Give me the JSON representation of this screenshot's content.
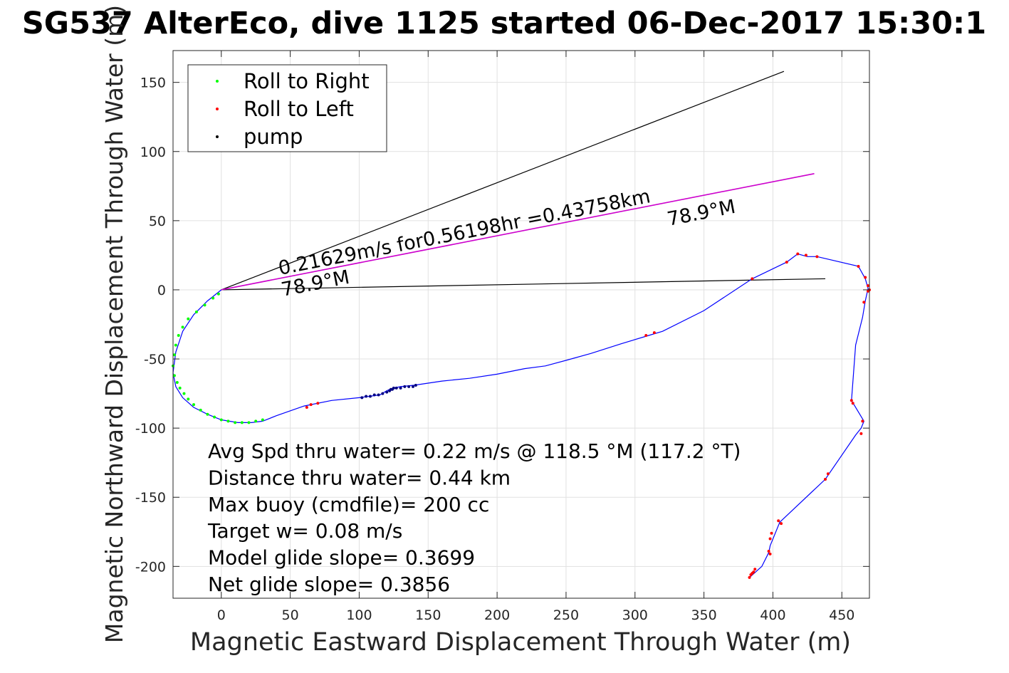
{
  "chart_data": {
    "type": "line",
    "title": "SG537 AlterEco, dive 1125 started 06-Dec-2017 15:30:1",
    "xlabel": "Magnetic Eastward Displacement Through Water (m)",
    "ylabel": "Magnetic Northward Displacement Through Water (m)",
    "xlim": [
      -35,
      470
    ],
    "ylim": [
      -223,
      173
    ],
    "xticks": [
      0,
      50,
      100,
      150,
      200,
      250,
      300,
      350,
      400,
      450
    ],
    "yticks": [
      -200,
      -150,
      -100,
      -50,
      0,
      50,
      100,
      150
    ],
    "grid": true,
    "legend": {
      "location": "top-left",
      "entries": [
        {
          "label": "Roll to Right",
          "color": "#00ff00"
        },
        {
          "label": "Roll to Left",
          "color": "#ff0000"
        },
        {
          "label": "pump",
          "color": "#000000"
        }
      ]
    },
    "colors": {
      "track": "#0000ff",
      "roll_right": "#00ff00",
      "roll_left": "#ff0000",
      "pump": "#000080",
      "avg_line": "#cc00cc",
      "bound_lines": "#000000"
    },
    "track": {
      "x": [
        0,
        -10,
        -20,
        -28,
        -33,
        -35,
        -33,
        -28,
        -20,
        -10,
        0,
        12,
        22,
        30,
        40,
        60,
        80,
        100,
        115,
        120,
        122,
        125,
        130,
        140,
        160,
        180,
        200,
        220,
        235,
        250,
        268,
        290,
        310,
        320,
        350,
        385,
        410,
        418,
        425,
        432,
        462,
        467,
        469,
        467,
        465,
        460,
        457,
        466,
        464,
        460,
        438,
        405,
        398,
        397,
        392,
        383
      ],
      "y": [
        0,
        -8,
        -18,
        -30,
        -45,
        -60,
        -70,
        -78,
        -85,
        -90,
        -94,
        -96,
        -96,
        -95,
        -91,
        -84,
        -80,
        -78,
        -76,
        -73,
        -72,
        -71,
        -70,
        -69,
        -66,
        -64,
        -61,
        -57,
        -55,
        -51,
        -46,
        -39,
        -33,
        -30,
        -15,
        8,
        20,
        26,
        24,
        24,
        17,
        8,
        1,
        -8,
        -20,
        -40,
        -80,
        -95,
        -100,
        -105,
        -137,
        -168,
        -185,
        -190,
        -200,
        -208
      ]
    },
    "roll_right_points": {
      "x": [
        -2,
        -6,
        -12,
        -18,
        -24,
        -28,
        -31,
        -33,
        -34,
        -35,
        -34,
        -32,
        -30,
        -27,
        -24,
        -20,
        -15,
        -10,
        -5,
        0,
        5,
        10,
        15,
        20,
        25,
        30
      ],
      "y": [
        -3,
        -6,
        -11,
        -16,
        -21,
        -27,
        -33,
        -40,
        -47,
        -55,
        -62,
        -67,
        -71,
        -75,
        -79,
        -83,
        -87,
        -90,
        -92,
        -94,
        -95,
        -96,
        -96,
        -96,
        -95,
        -94
      ]
    },
    "roll_left_points": {
      "x": [
        62,
        65,
        70,
        308,
        314,
        385,
        410,
        418,
        424,
        432,
        462,
        467,
        469,
        470,
        469,
        466,
        457,
        458,
        465,
        464,
        438,
        440,
        404,
        406,
        397,
        398,
        398,
        399,
        384,
        385,
        386,
        387,
        383
      ],
      "y": [
        -85,
        -83,
        -82,
        -33,
        -31,
        8,
        20,
        26,
        25,
        24,
        17,
        9,
        3,
        0,
        -1,
        -9,
        -80,
        -82,
        -95,
        -104,
        -137,
        -133,
        -167,
        -169,
        -189,
        -191,
        -180,
        -176,
        -206,
        -205,
        -204,
        -202,
        -208
      ]
    },
    "pump_points": {
      "x": [
        102,
        105,
        108,
        111,
        114,
        117,
        120,
        122,
        123,
        124,
        125,
        127,
        130,
        133,
        136,
        139,
        141
      ],
      "y": [
        -78,
        -77,
        -77,
        -76,
        -76,
        -75,
        -74,
        -73,
        -72,
        -72,
        -71,
        -71,
        -71,
        -70,
        -70,
        -70,
        -69
      ]
    },
    "heading_lines": {
      "upper": {
        "x": [
          0,
          408
        ],
        "y": [
          0,
          158
        ]
      },
      "average": {
        "x": [
          0,
          430
        ],
        "y": [
          0,
          84
        ]
      },
      "lower": {
        "x": [
          0,
          438
        ],
        "y": [
          0,
          8
        ]
      }
    },
    "annotations": {
      "speed_label": "0.21629m/s for0.56198hr =0.43758km",
      "heading_label_start": "78.9°M",
      "heading_label_end": "78.9°M"
    },
    "stats": [
      "Avg Spd thru water=  0.22 m/s @ 118.5 °M (117.2 °T)",
      "Distance thru water=  0.44 km",
      "Max buoy (cmdfile)= 200 cc",
      "Target w= 0.08 m/s",
      "Model glide slope= 0.3699",
      "Net glide slope= 0.3856"
    ]
  }
}
